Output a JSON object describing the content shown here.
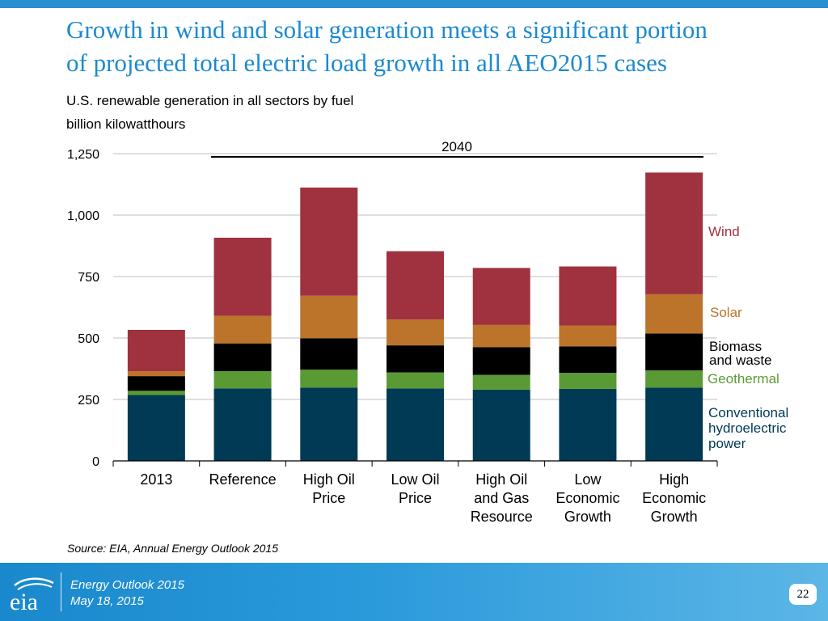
{
  "slide": {
    "title_line1": "Growth in wind and solar generation meets a significant portion",
    "title_line2": "of projected total electric load growth in all AEO2015 cases",
    "subtitle_line1": "U.S. renewable generation in all sectors by fuel",
    "subtitle_line2": "billion kilowatthours",
    "source": "Source:  EIA, Annual Energy Outlook 2015",
    "footer_line1": "Energy  Outlook 2015",
    "footer_line2": "May 18, 2015",
    "page_number": "22",
    "logo_text": "eia"
  },
  "chart_data": {
    "type": "bar",
    "stacked": true,
    "title": "U.S. renewable generation in all sectors by fuel",
    "ylabel": "billion kilowatthours",
    "ylim": [
      0,
      1250
    ],
    "yticks": [
      0,
      250,
      500,
      750,
      1000,
      1250
    ],
    "ytick_labels": [
      "0",
      "250",
      "500",
      "750",
      "1,000",
      "1,250"
    ],
    "bracket_label": "2040",
    "categories": [
      [
        "2013"
      ],
      [
        "Reference"
      ],
      [
        "High Oil",
        "Price"
      ],
      [
        "Low Oil",
        "Price"
      ],
      [
        "High Oil",
        "and Gas",
        "Resource"
      ],
      [
        "Low",
        "Economic",
        "Growth"
      ],
      [
        "High",
        "Economic",
        "Growth"
      ]
    ],
    "series": [
      {
        "name": "Conventional hydroelectric power",
        "label_lines": [
          "Conventional",
          "hydroelectric",
          "power"
        ],
        "color": "#003a55",
        "values": [
          268,
          295,
          298,
          295,
          290,
          293,
          298
        ]
      },
      {
        "name": "Geothermal",
        "label_lines": [
          "Geothermal"
        ],
        "color": "#5a9a35",
        "values": [
          17,
          70,
          73,
          65,
          60,
          65,
          70
        ]
      },
      {
        "name": "Biomass and waste",
        "label_lines": [
          "Biomass",
          "and waste"
        ],
        "color": "#000000",
        "values": [
          60,
          113,
          128,
          110,
          113,
          108,
          150
        ]
      },
      {
        "name": "Solar",
        "label_lines": [
          "Solar"
        ],
        "color": "#bc742b",
        "values": [
          20,
          112,
          173,
          105,
          90,
          85,
          160
        ]
      },
      {
        "name": "Wind",
        "label_lines": [
          "Wind"
        ],
        "color": "#a0313f",
        "values": [
          168,
          318,
          440,
          278,
          232,
          240,
          495
        ]
      }
    ]
  }
}
